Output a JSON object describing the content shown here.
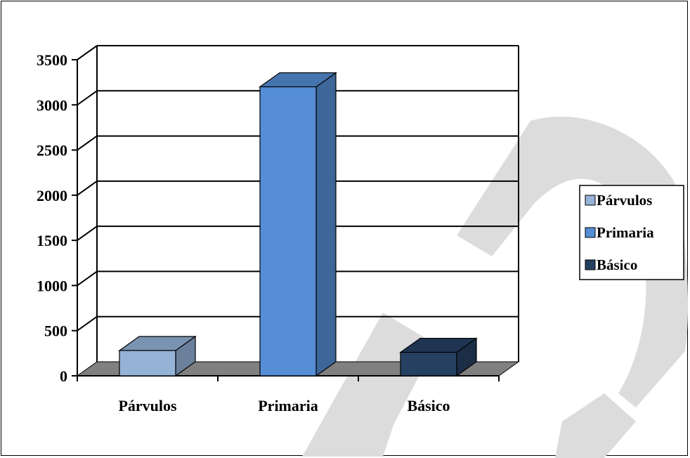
{
  "chart_data": {
    "type": "bar",
    "categories": [
      "Párvulos",
      "Primaria",
      "Básico"
    ],
    "values": [
      280,
      3200,
      260
    ],
    "ylim": [
      0,
      3500
    ],
    "yticks": [
      "0",
      "500",
      "1000",
      "1500",
      "2000",
      "2500",
      "3000",
      "3500"
    ],
    "grid": true,
    "legend_position": "right",
    "legend": [
      "Párvulos",
      "Primaria",
      "Básico"
    ],
    "colors": {
      "Párvulos": "#95b3d7",
      "Primaria": "#558ed5",
      "Básico": "#254061"
    }
  }
}
